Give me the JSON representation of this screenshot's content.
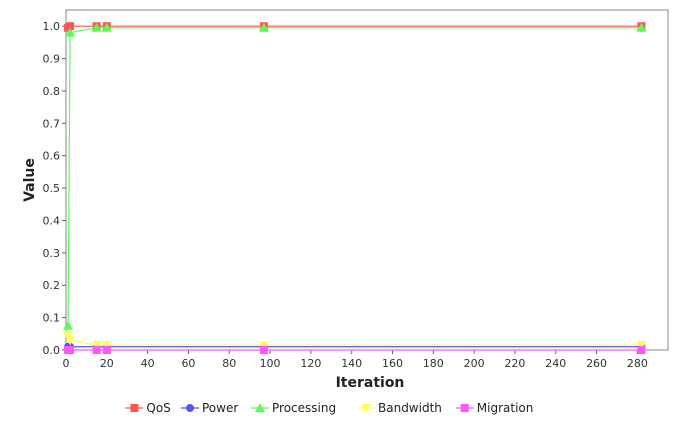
{
  "chart_data": {
    "type": "line",
    "title": "",
    "xlabel": "Iteration",
    "ylabel": "Value",
    "xlim": [
      0,
      295
    ],
    "ylim": [
      0,
      1.05
    ],
    "xticks": [
      0,
      20,
      40,
      60,
      80,
      100,
      120,
      140,
      160,
      180,
      200,
      220,
      240,
      260,
      280
    ],
    "yticks": [
      0.0,
      0.1,
      0.2,
      0.3,
      0.4,
      0.5,
      0.6,
      0.7,
      0.8,
      0.9,
      1.0
    ],
    "ytick_labels": [
      "0.0",
      "0.1",
      "0.2",
      "0.3",
      "0.4",
      "0.5",
      "0.6",
      "0.7",
      "0.8",
      "0.9",
      "1.0"
    ],
    "grid": false,
    "legend_position": "bottom",
    "series": [
      {
        "name": "QoS",
        "color": "#ff5555",
        "marker": "square",
        "x": [
          1,
          2,
          15,
          20,
          97,
          282
        ],
        "y": [
          0.995,
          1.0,
          1.0,
          1.0,
          1.0,
          1.0
        ]
      },
      {
        "name": "Power",
        "color": "#5555ff",
        "marker": "circle",
        "x": [
          1,
          2,
          15,
          20,
          97,
          282
        ],
        "y": [
          0.01,
          0.01,
          0.01,
          0.01,
          0.01,
          0.01
        ]
      },
      {
        "name": "Processing",
        "color": "#55ff55",
        "marker": "triangle",
        "x": [
          1,
          2,
          15,
          20,
          97,
          282
        ],
        "y": [
          0.075,
          0.98,
          0.995,
          0.995,
          0.995,
          0.995
        ]
      },
      {
        "name": "Bandwidth",
        "color": "#ffff55",
        "marker": "triangle-down",
        "x": [
          1,
          2,
          15,
          20,
          97,
          282
        ],
        "y": [
          0.045,
          0.03,
          0.015,
          0.015,
          0.015,
          0.015
        ]
      },
      {
        "name": "Migration",
        "color": "#ff55ff",
        "marker": "square",
        "x": [
          1,
          2,
          15,
          20,
          97,
          282
        ],
        "y": [
          0.0,
          0.0,
          0.0,
          0.0,
          0.0,
          0.0
        ]
      }
    ]
  }
}
